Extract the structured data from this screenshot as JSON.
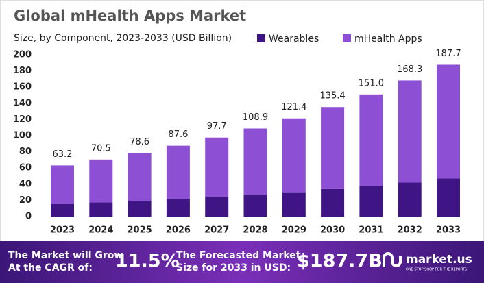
{
  "chart_data": {
    "type": "stacked-bar",
    "title": "Global mHealth Apps Market",
    "subtitle": "Size, by Component, 2023-2033 (USD Billion)",
    "categories": [
      "2023",
      "2024",
      "2025",
      "2026",
      "2027",
      "2028",
      "2029",
      "2030",
      "2031",
      "2032",
      "2033"
    ],
    "series": [
      {
        "name": "Wearables",
        "color": "#3f1585",
        "values": [
          16,
          17.5,
          19.5,
          22,
          24.5,
          27,
          30,
          34,
          38,
          42,
          47
        ]
      },
      {
        "name": "mHealth Apps",
        "color": "#8d4fd3",
        "values": [
          47.2,
          53,
          59.1,
          65.6,
          73.2,
          81.9,
          91.4,
          101.4,
          113,
          126.3,
          140.7
        ]
      }
    ],
    "total_labels": [
      "63.2",
      "70.5",
      "78.6",
      "87.6",
      "97.7",
      "108.9",
      "121.4",
      "135.4",
      "151.0",
      "168.3",
      "187.7"
    ],
    "ylim": [
      0,
      200
    ],
    "yticks": [
      0,
      20,
      40,
      60,
      80,
      100,
      120,
      140,
      160,
      180,
      200
    ],
    "grid": false
  },
  "footer": {
    "cagr_text": [
      "The Market will Grow",
      "At the CAGR of:"
    ],
    "cagr": "11.5%",
    "forecast_text": [
      "The Forecasted Market",
      "Size for 2033 in USD:"
    ],
    "forecast": "$187.7B",
    "brand": "market.us",
    "tagline": "ONE STOP SHOP FOR THE REPORTS"
  }
}
